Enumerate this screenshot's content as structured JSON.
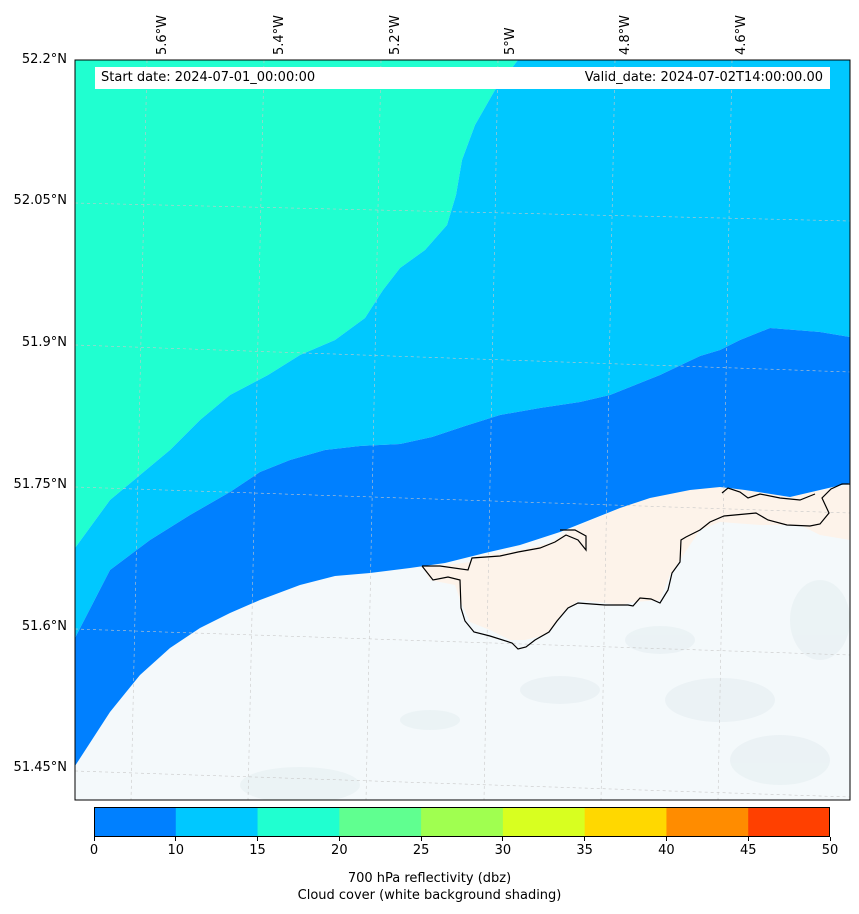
{
  "longitude_labels": [
    "5.6°W",
    "5.4°W",
    "5.2°W",
    "5°W",
    "4.8°W",
    "4.6°W"
  ],
  "latitude_labels": [
    "52.2°N",
    "52.05°N",
    "51.9°N",
    "51.75°N",
    "51.6°N",
    "51.45°N"
  ],
  "info": {
    "start_date": "Start date: 2024-07-01_00:00:00",
    "valid_date": "Valid_date: 2024-07-02T14:00:00.00"
  },
  "colorbar": {
    "ticks": [
      "0",
      "10",
      "15",
      "20",
      "25",
      "30",
      "35",
      "40",
      "45",
      "50"
    ],
    "colors": [
      "#0080ff",
      "#00c8ff",
      "#20ffd0",
      "#60ff90",
      "#a0ff50",
      "#d8ff20",
      "#ffd800",
      "#ff8c00",
      "#ff4000"
    ],
    "title_line1": "700 hPa reflectivity (dbz)",
    "title_line2": "Cloud cover (white background shading)"
  },
  "map_colors": {
    "band_0_10": "#0080ff",
    "band_10_15": "#00c8ff",
    "band_15_20": "#20ffd0",
    "cloud_shading": "#f4f9fb",
    "land_tint": "#fdf3ea",
    "coastline": "#000000"
  }
}
